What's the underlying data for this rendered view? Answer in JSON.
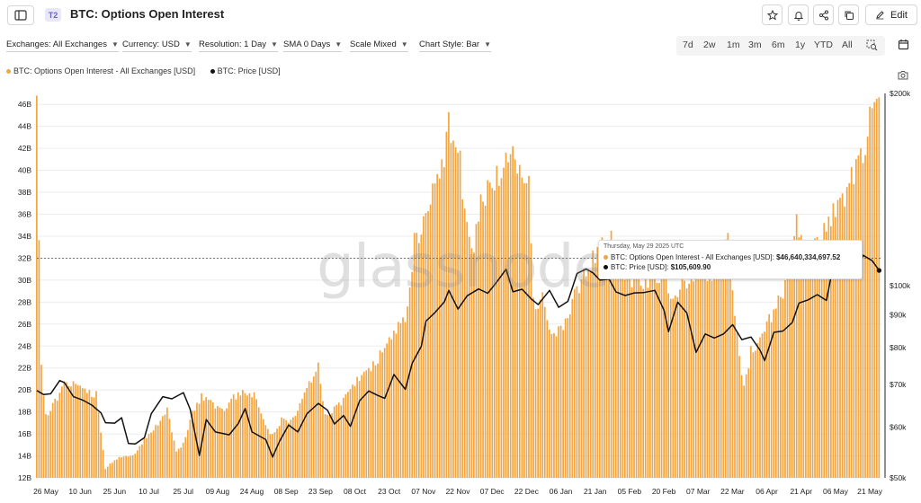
{
  "header": {
    "badge": "T2",
    "title": "BTC: Options Open Interest",
    "edit_label": "Edit",
    "icons": [
      "sidebar-toggle-icon",
      "star-icon",
      "bell-icon",
      "share-icon",
      "copy-icon",
      "pencil-icon"
    ]
  },
  "filters": [
    {
      "label": "Exchanges: All Exchanges"
    },
    {
      "label": "Currency: USD"
    },
    {
      "label": "Resolution: 1 Day"
    },
    {
      "label": "SMA 0 Days"
    },
    {
      "label": "Scale Mixed"
    },
    {
      "label": "Chart Style: Bar"
    }
  ],
  "ranges": [
    "7d",
    "2w",
    "1m",
    "3m",
    "6m",
    "1y",
    "YTD",
    "All"
  ],
  "tools": [
    "zoom-select-icon",
    "calendar-icon",
    "camera-icon"
  ],
  "watermark": "glassnode",
  "tooltip": {
    "date": "Thursday, May 29 2025 UTC",
    "rows": [
      {
        "label": "BTC: Options Open Interest - All Exchanges [USD]:",
        "value": "$46,640,334,697.52",
        "color": "#f2a541"
      },
      {
        "label": "BTC: Price [USD]:",
        "value": "$105,609.90",
        "color": "#111111"
      }
    ]
  },
  "chart_data": {
    "type": "bar",
    "title": "BTC: Options Open Interest",
    "legend_position": "top-left",
    "grid": true,
    "x_tick_labels": [
      "26 May",
      "10 Jun",
      "25 Jun",
      "10 Jul",
      "25 Jul",
      "09 Aug",
      "24 Aug",
      "08 Sep",
      "23 Sep",
      "08 Oct",
      "23 Oct",
      "07 Nov",
      "22 Nov",
      "07 Dec",
      "22 Dec",
      "06 Jan",
      "21 Jan",
      "05 Feb",
      "20 Feb",
      "07 Mar",
      "22 Mar",
      "06 Apr",
      "21 Apr",
      "06 May",
      "21 May"
    ],
    "y_left": {
      "ticks": [
        "12B",
        "14B",
        "16B",
        "18B",
        "20B",
        "22B",
        "24B",
        "26B",
        "28B",
        "30B",
        "32B",
        "34B",
        "36B",
        "38B",
        "40B",
        "42B",
        "44B",
        "46B"
      ],
      "range": [
        12,
        47
      ],
      "unit": "B USD"
    },
    "y_right": {
      "ticks": [
        "$50k",
        "$60k",
        "$70k",
        "$80k",
        "$90k",
        "$100k",
        "$200k"
      ],
      "scale": "log",
      "range": [
        50000,
        200000
      ]
    },
    "x_range": [
      "2024-05-26",
      "2025-05-30"
    ],
    "series": [
      {
        "name": "BTC: Options Open Interest - All Exchanges [USD]",
        "type": "bar",
        "axis": "left",
        "color": "#f2a541",
        "points": [
          [
            "2024-05-26",
            46.8
          ],
          [
            "2024-05-28",
            22.3
          ],
          [
            "2024-05-30",
            17.8
          ],
          [
            "2024-06-03",
            19.2
          ],
          [
            "2024-06-07",
            20.8
          ],
          [
            "2024-06-11",
            20.8
          ],
          [
            "2024-06-14",
            20.4
          ],
          [
            "2024-06-18",
            20.0
          ],
          [
            "2024-06-21",
            19.9
          ],
          [
            "2024-06-25",
            12.8
          ],
          [
            "2024-06-27",
            13.3
          ],
          [
            "2024-07-01",
            13.9
          ],
          [
            "2024-07-04",
            14.0
          ],
          [
            "2024-07-08",
            14.2
          ],
          [
            "2024-07-12",
            15.6
          ],
          [
            "2024-07-17",
            16.8
          ],
          [
            "2024-07-22",
            18.4
          ],
          [
            "2024-07-26",
            14.4
          ],
          [
            "2024-07-29",
            15.2
          ],
          [
            "2024-08-02",
            18.1
          ],
          [
            "2024-08-06",
            19.7
          ],
          [
            "2024-08-10",
            19.1
          ],
          [
            "2024-08-15",
            18.3
          ],
          [
            "2024-08-20",
            19.6
          ],
          [
            "2024-08-24",
            20.0
          ],
          [
            "2024-08-29",
            19.8
          ],
          [
            "2024-09-03",
            16.8
          ],
          [
            "2024-09-06",
            16.0
          ],
          [
            "2024-09-10",
            17.5
          ],
          [
            "2024-09-14",
            17.3
          ],
          [
            "2024-09-18",
            18.8
          ],
          [
            "2024-09-22",
            20.8
          ],
          [
            "2024-09-26",
            22.5
          ],
          [
            "2024-09-29",
            17.8
          ],
          [
            "2024-10-03",
            18.5
          ],
          [
            "2024-10-08",
            19.6
          ],
          [
            "2024-10-13",
            21.2
          ],
          [
            "2024-10-18",
            22.0
          ],
          [
            "2024-10-23",
            23.6
          ],
          [
            "2024-10-27",
            24.8
          ],
          [
            "2024-10-31",
            26.2
          ],
          [
            "2024-11-04",
            27.6
          ],
          [
            "2024-11-07",
            34.3
          ],
          [
            "2024-11-11",
            35.8
          ],
          [
            "2024-11-15",
            38.8
          ],
          [
            "2024-11-19",
            41.0
          ],
          [
            "2024-11-22",
            45.3
          ],
          [
            "2024-11-24",
            42.7
          ],
          [
            "2024-11-27",
            41.8
          ],
          [
            "2024-11-29",
            36.5
          ],
          [
            "2024-12-02",
            32.9
          ],
          [
            "2024-12-06",
            37.8
          ],
          [
            "2024-12-09",
            39.1
          ],
          [
            "2024-12-13",
            40.4
          ],
          [
            "2024-12-17",
            41.6
          ],
          [
            "2024-12-20",
            42.2
          ],
          [
            "2024-12-23",
            40.5
          ],
          [
            "2024-12-27",
            39.5
          ],
          [
            "2024-12-29",
            28.4
          ],
          [
            "2025-01-02",
            28.9
          ],
          [
            "2025-01-05",
            25.5
          ],
          [
            "2025-01-09",
            25.8
          ],
          [
            "2025-01-12",
            26.5
          ],
          [
            "2025-01-16",
            29.2
          ],
          [
            "2025-01-20",
            31.0
          ],
          [
            "2025-01-24",
            32.7
          ],
          [
            "2025-01-28",
            33.9
          ],
          [
            "2025-02-01",
            34.5
          ],
          [
            "2025-02-04",
            31.7
          ],
          [
            "2025-02-08",
            30.2
          ],
          [
            "2025-02-12",
            31.0
          ],
          [
            "2025-02-16",
            30.5
          ],
          [
            "2025-02-20",
            31.2
          ],
          [
            "2025-02-25",
            30.8
          ],
          [
            "2025-03-01",
            28.6
          ],
          [
            "2025-03-04",
            30.1
          ],
          [
            "2025-03-08",
            31.0
          ],
          [
            "2025-03-12",
            31.4
          ],
          [
            "2025-03-16",
            31.0
          ],
          [
            "2025-03-20",
            32.6
          ],
          [
            "2025-03-24",
            34.3
          ],
          [
            "2025-03-28",
            25.2
          ],
          [
            "2025-03-31",
            20.4
          ],
          [
            "2025-04-03",
            24.0
          ],
          [
            "2025-04-07",
            24.8
          ],
          [
            "2025-04-11",
            26.9
          ],
          [
            "2025-04-15",
            28.6
          ],
          [
            "2025-04-19",
            30.8
          ],
          [
            "2025-04-23",
            36.0
          ],
          [
            "2025-04-27",
            33.1
          ],
          [
            "2025-05-01",
            33.8
          ],
          [
            "2025-05-05",
            35.2
          ],
          [
            "2025-05-09",
            37.0
          ],
          [
            "2025-05-13",
            37.9
          ],
          [
            "2025-05-17",
            40.3
          ],
          [
            "2025-05-21",
            42.0
          ],
          [
            "2025-05-25",
            45.8
          ],
          [
            "2025-05-28",
            46.5
          ],
          [
            "2025-05-29",
            46.64
          ]
        ]
      },
      {
        "name": "BTC: Price [USD]",
        "type": "line",
        "axis": "right",
        "color": "#111111",
        "points": [
          [
            "2024-05-26",
            68500
          ],
          [
            "2024-05-29",
            67500
          ],
          [
            "2024-06-01",
            67700
          ],
          [
            "2024-06-05",
            71000
          ],
          [
            "2024-06-07",
            70500
          ],
          [
            "2024-06-11",
            67000
          ],
          [
            "2024-06-15",
            66200
          ],
          [
            "2024-06-19",
            65000
          ],
          [
            "2024-06-23",
            63200
          ],
          [
            "2024-06-25",
            61000
          ],
          [
            "2024-06-29",
            60900
          ],
          [
            "2024-07-02",
            62100
          ],
          [
            "2024-07-05",
            56600
          ],
          [
            "2024-07-08",
            56500
          ],
          [
            "2024-07-12",
            57800
          ],
          [
            "2024-07-15",
            63000
          ],
          [
            "2024-07-20",
            67000
          ],
          [
            "2024-07-24",
            66500
          ],
          [
            "2024-07-29",
            68000
          ],
          [
            "2024-08-01",
            64000
          ],
          [
            "2024-08-05",
            54200
          ],
          [
            "2024-08-08",
            61700
          ],
          [
            "2024-08-12",
            59000
          ],
          [
            "2024-08-18",
            58400
          ],
          [
            "2024-08-22",
            60800
          ],
          [
            "2024-08-25",
            64200
          ],
          [
            "2024-08-28",
            59000
          ],
          [
            "2024-09-03",
            57400
          ],
          [
            "2024-09-06",
            53900
          ],
          [
            "2024-09-09",
            57000
          ],
          [
            "2024-09-13",
            60500
          ],
          [
            "2024-09-17",
            59000
          ],
          [
            "2024-09-21",
            63000
          ],
          [
            "2024-09-26",
            65400
          ],
          [
            "2024-09-30",
            63800
          ],
          [
            "2024-10-03",
            60700
          ],
          [
            "2024-10-07",
            62600
          ],
          [
            "2024-10-10",
            60200
          ],
          [
            "2024-10-14",
            66000
          ],
          [
            "2024-10-18",
            68400
          ],
          [
            "2024-10-22",
            67300
          ],
          [
            "2024-10-25",
            66600
          ],
          [
            "2024-10-29",
            72600
          ],
          [
            "2024-11-03",
            68800
          ],
          [
            "2024-11-06",
            75600
          ],
          [
            "2024-11-10",
            80400
          ],
          [
            "2024-11-12",
            88000
          ],
          [
            "2024-11-16",
            90800
          ],
          [
            "2024-11-20",
            94300
          ],
          [
            "2024-11-22",
            98300
          ],
          [
            "2024-11-26",
            91900
          ],
          [
            "2024-11-30",
            96400
          ],
          [
            "2024-12-05",
            98800
          ],
          [
            "2024-12-09",
            97300
          ],
          [
            "2024-12-13",
            101400
          ],
          [
            "2024-12-17",
            106100
          ],
          [
            "2024-12-20",
            97800
          ],
          [
            "2024-12-24",
            98700
          ],
          [
            "2024-12-28",
            95300
          ],
          [
            "2024-12-31",
            93400
          ],
          [
            "2025-01-05",
            98300
          ],
          [
            "2025-01-09",
            92500
          ],
          [
            "2025-01-13",
            94500
          ],
          [
            "2025-01-17",
            104500
          ],
          [
            "2025-01-21",
            106200
          ],
          [
            "2025-01-24",
            104700
          ],
          [
            "2025-01-27",
            102000
          ],
          [
            "2025-01-31",
            102400
          ],
          [
            "2025-02-03",
            97800
          ],
          [
            "2025-02-07",
            96500
          ],
          [
            "2025-02-11",
            97400
          ],
          [
            "2025-02-15",
            97500
          ],
          [
            "2025-02-20",
            98300
          ],
          [
            "2025-02-24",
            91500
          ],
          [
            "2025-02-26",
            84700
          ],
          [
            "2025-03-02",
            94200
          ],
          [
            "2025-03-06",
            90600
          ],
          [
            "2025-03-10",
            78600
          ],
          [
            "2025-03-14",
            84000
          ],
          [
            "2025-03-18",
            82800
          ],
          [
            "2025-03-22",
            84000
          ],
          [
            "2025-03-26",
            86900
          ],
          [
            "2025-03-30",
            82300
          ],
          [
            "2025-04-03",
            83100
          ],
          [
            "2025-04-07",
            79200
          ],
          [
            "2025-04-09",
            76300
          ],
          [
            "2025-04-13",
            84500
          ],
          [
            "2025-04-17",
            84900
          ],
          [
            "2025-04-21",
            87500
          ],
          [
            "2025-04-24",
            93900
          ],
          [
            "2025-04-28",
            95000
          ],
          [
            "2025-05-02",
            96800
          ],
          [
            "2025-05-06",
            94800
          ],
          [
            "2025-05-08",
            103300
          ],
          [
            "2025-05-12",
            102800
          ],
          [
            "2025-05-16",
            103500
          ],
          [
            "2025-05-20",
            106800
          ],
          [
            "2025-05-22",
            111600
          ],
          [
            "2025-05-26",
            109400
          ],
          [
            "2025-05-29",
            105609.9
          ]
        ]
      }
    ],
    "annotations": [
      {
        "type": "hline",
        "axis": "left",
        "value": 32,
        "style": "dashed"
      }
    ]
  }
}
